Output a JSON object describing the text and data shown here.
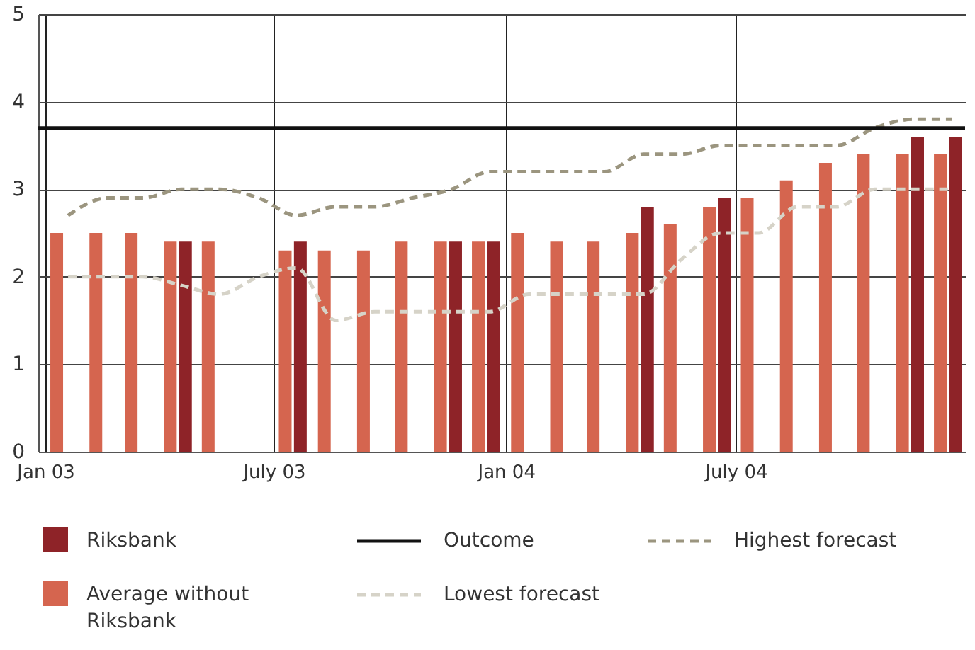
{
  "chart_data": {
    "type": "bar",
    "x": [
      "2003-01-19",
      "2003-02-19",
      "2003-03-19",
      "2003-04-19",
      "2003-05-19",
      "2003-06-19",
      "2003-07-19",
      "2003-08-19",
      "2003-09-19",
      "2003-10-19",
      "2003-11-19",
      "2003-12-19",
      "2004-01-19",
      "2004-02-19",
      "2004-03-19",
      "2004-04-19",
      "2004-05-19",
      "2004-06-19",
      "2004-07-19",
      "2004-08-19",
      "2004-09-19",
      "2004-10-19",
      "2004-11-19",
      "2004-12-19"
    ],
    "series": [
      {
        "name": "Riksbank",
        "color": "#8e2328",
        "x": [
          "2003-04-22",
          "2003-07-22",
          "2003-11-22",
          "2003-12-22",
          "2004-04-22",
          "2004-06-22",
          "2004-11-22",
          "2004-12-22"
        ],
        "values": [
          2.4,
          2.4,
          2.4,
          2.4,
          2.8,
          2.9,
          3.6,
          3.6
        ]
      },
      {
        "name": "Average without Riksbank",
        "color": "#d5654f",
        "x": [
          "2003-01-10",
          "2003-02-10",
          "2003-03-10",
          "2003-04-10",
          "2003-05-10",
          "2003-07-10",
          "2003-08-10",
          "2003-09-10",
          "2003-10-10",
          "2003-11-10",
          "2003-12-10",
          "2004-01-10",
          "2004-02-10",
          "2004-03-10",
          "2004-04-10",
          "2004-05-10",
          "2004-06-10",
          "2004-07-10",
          "2004-08-10",
          "2004-09-10",
          "2004-10-10",
          "2004-11-10",
          "2004-12-10"
        ],
        "values": [
          2.5,
          2.5,
          2.5,
          2.4,
          2.4,
          2.3,
          2.3,
          2.3,
          2.4,
          2.4,
          2.4,
          2.5,
          2.4,
          2.4,
          2.5,
          2.6,
          2.8,
          2.9,
          3.1,
          3.3,
          3.4,
          3.4,
          3.4
        ]
      },
      {
        "name": "Highest forecast",
        "type": "line",
        "color": "#9b957f",
        "line_style": "dashed",
        "values": [
          2.7,
          2.9,
          2.9,
          3.0,
          3.0,
          2.9,
          2.7,
          2.8,
          2.8,
          2.9,
          3.0,
          3.2,
          3.2,
          3.2,
          3.2,
          3.4,
          3.4,
          3.5,
          3.5,
          3.5,
          3.5,
          3.7,
          3.8,
          3.8
        ]
      },
      {
        "name": "Lowest forecast",
        "type": "line",
        "color": "#d6d3c8",
        "line_style": "dashed",
        "values": [
          2.0,
          2.0,
          2.0,
          1.9,
          1.8,
          2.0,
          2.1,
          1.5,
          1.6,
          1.6,
          1.6,
          1.6,
          1.8,
          1.8,
          1.8,
          1.8,
          2.2,
          2.5,
          2.5,
          2.8,
          2.8,
          3.0,
          3.0,
          3.0
        ]
      }
    ],
    "ref_lines": [
      {
        "axis": "y",
        "value": 3.7,
        "label": "Outcome",
        "color": "#111111",
        "line_style": "solid"
      }
    ],
    "xlim": [
      "2003-01-01",
      "2004-12-24"
    ],
    "xticks": [
      {
        "value": "2003-01-01",
        "label": "Jan 03"
      },
      {
        "value": "2003-07-01",
        "label": "July 03"
      },
      {
        "value": "2004-01-01",
        "label": "Jan 04"
      },
      {
        "value": "2004-07-01",
        "label": "July 04"
      }
    ],
    "ylim": [
      0,
      5
    ],
    "yticks": [
      0,
      1,
      2,
      3,
      4,
      5
    ],
    "grid": true,
    "legend": "bottom"
  }
}
